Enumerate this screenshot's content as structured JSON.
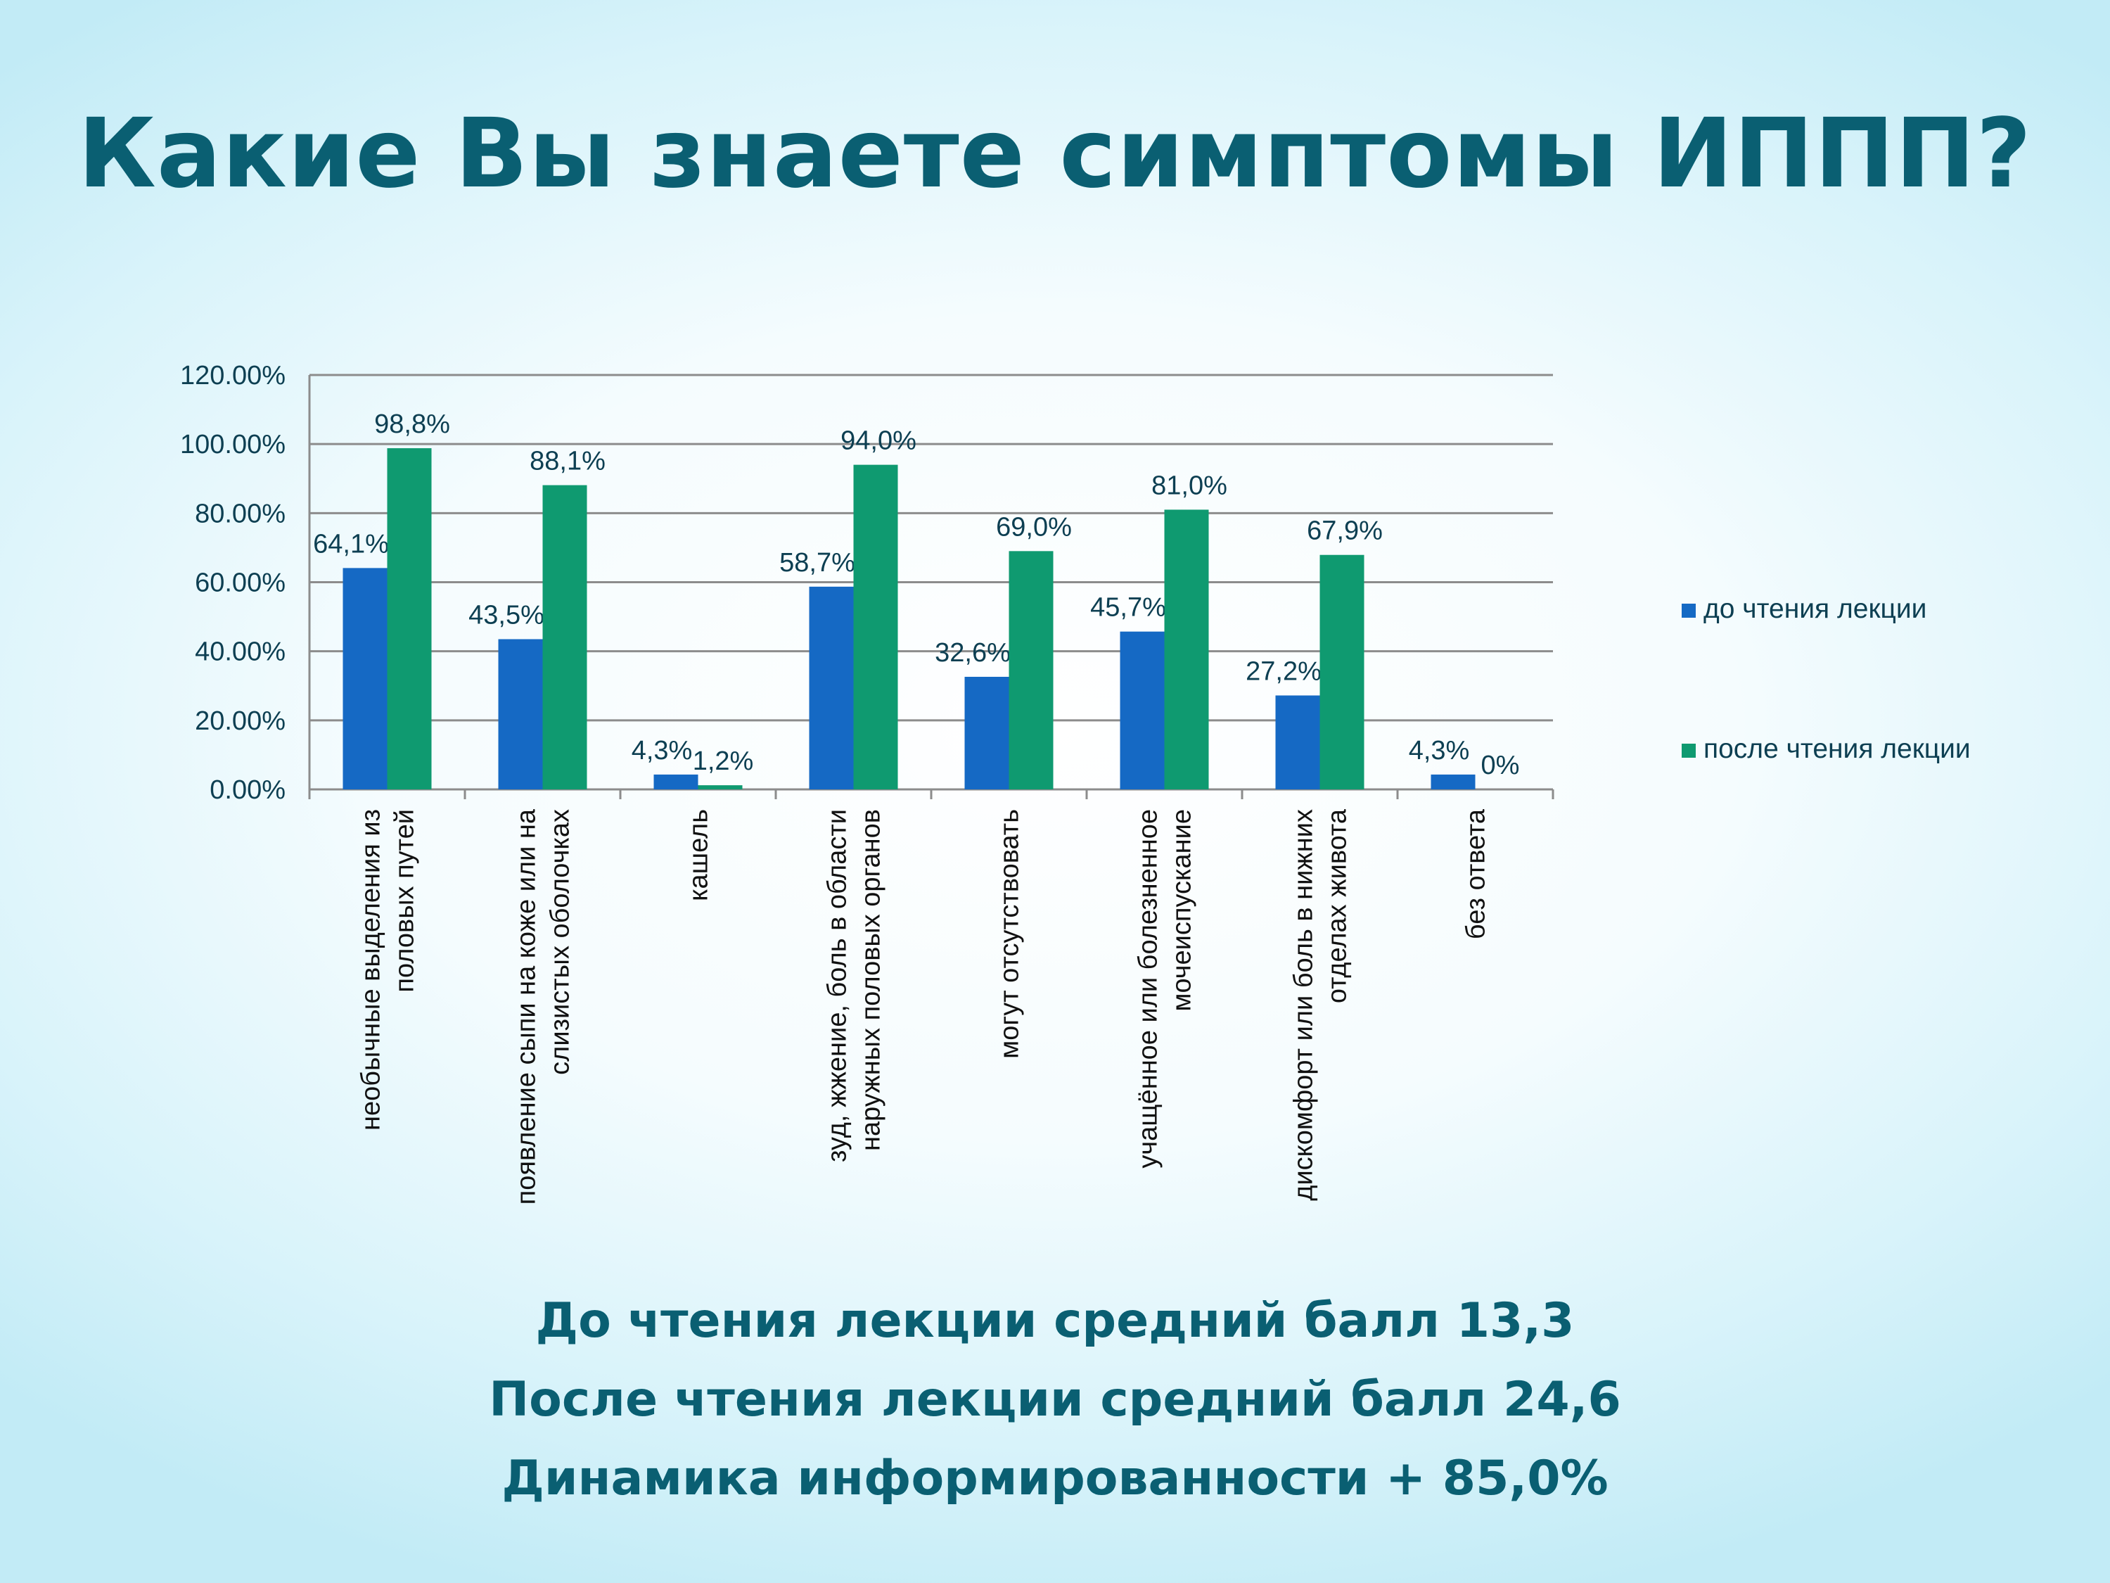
{
  "title": "Какие Вы знаете симптомы ИППП?",
  "chart_data": {
    "type": "bar",
    "categories": [
      [
        "необычные выделения из",
        "половых путей"
      ],
      [
        "появление сыпи на коже или на",
        "слизистых оболочках"
      ],
      [
        "кашель"
      ],
      [
        "зуд, жжение, боль в области",
        "наружных половых органов"
      ],
      [
        "могут отсутствовать"
      ],
      [
        "учащённое или болезненное",
        "мочеиспускание"
      ],
      [
        "дискомфорт или боль в нижних",
        "отделах живота"
      ],
      [
        "без ответа"
      ]
    ],
    "series": [
      {
        "name": "до чтения лекции",
        "color": "#1569c4",
        "values": [
          64.1,
          43.5,
          4.3,
          58.7,
          32.6,
          45.7,
          27.2,
          4.3
        ],
        "labels": [
          "64,1%",
          "43,5%",
          "4,3%",
          "58,7%",
          "32,6%",
          "45,7%",
          "27,2%",
          "4,3%"
        ]
      },
      {
        "name": "после чтения лекции",
        "color": "#0f9a70",
        "values": [
          98.8,
          88.1,
          1.2,
          94.0,
          69.0,
          81.0,
          67.9,
          0
        ],
        "labels": [
          "98,8%",
          "88,1%",
          "1,2%",
          "94,0%",
          "69,0%",
          "81,0%",
          "67,9%",
          "0%"
        ]
      }
    ],
    "y_ticks": [
      "0.00%",
      "20.00%",
      "40.00%",
      "60.00%",
      "80.00%",
      "100.00%",
      "120.00%"
    ],
    "ylim": [
      0,
      120
    ],
    "grid": true,
    "legend_position": "right"
  },
  "summary": {
    "line1": "До чтения лекции средний балл 13,3",
    "line2": "После чтения лекции средний балл 24,6",
    "line3": "Динамика информированности + 85,0%"
  }
}
